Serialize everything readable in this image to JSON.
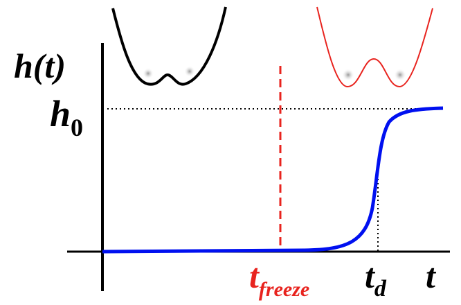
{
  "labels": {
    "y_axis": "h(t)",
    "h0": {
      "main": "h",
      "sub": "0"
    },
    "t_freeze": {
      "main": "t",
      "sub": "freeze"
    },
    "t_d": {
      "main": "t",
      "sub": "d"
    },
    "x_axis": "t"
  }
}
